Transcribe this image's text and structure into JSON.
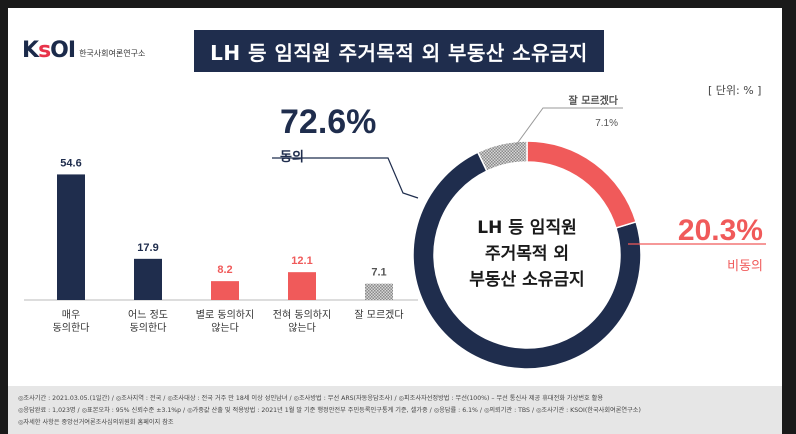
{
  "header": {
    "logo_text": "KSOI",
    "logo_subtitle": "한국사회여론연구소",
    "title": "LH 등 임직원 주거목적 외 부동산 소유금지",
    "unit": "[ 단위: % ]"
  },
  "chart_data": [
    {
      "type": "bar",
      "categories": [
        "매우\n동의한다",
        "어느 정도\n동의한다",
        "별로 동의하지\n않는다",
        "전혀 동의하지\n않는다",
        "잘 모르겠다"
      ],
      "values": [
        54.6,
        17.9,
        8.2,
        12.1,
        7.1
      ],
      "value_labels": [
        "54.6",
        "17.9",
        "8.2",
        "12.1",
        "7.1"
      ],
      "colors": [
        "#1f2d4d",
        "#1f2d4d",
        "#f05a5a",
        "#f05a5a",
        "hatch"
      ],
      "label_colors": [
        "#1f2d4d",
        "#1f2d4d",
        "#f05a5a",
        "#f05a5a",
        "#555555"
      ]
    },
    {
      "type": "pie",
      "style": "donut",
      "center_text": [
        "LH 등 임직원",
        "주거목적 외",
        "부동산 소유금지"
      ],
      "slices": [
        {
          "label": "동의",
          "value": 72.6,
          "value_label": "72.6%",
          "color": "#1f2d4d"
        },
        {
          "label": "비동의",
          "value": 20.3,
          "value_label": "20.3%",
          "color": "#f05a5a"
        },
        {
          "label": "잘 모르겠다",
          "value": 7.1,
          "value_label": "7.1%",
          "color": "hatch"
        }
      ]
    }
  ],
  "footer": {
    "line1": "◎조사기간 : 2021.03.05.(1일간)  / ◎조사지역 : 전국  / ◎조사대상 : 전국 거주 만 18세 이상 성인남녀  / ◎조사방법 : 무선 ARS(자동응답조사)  / ◎피조사자선정방법 : 무선(100%) – 무선 통신사 제공 휴대전화 가상번호 활용",
    "line2": "◎응답완료 : 1,023명  / ◎표본오차 : 95% 신뢰수준 ±3.1%p  / ◎가중값 산출 및 적용방법 : 2021년 1월 말 기준 행정안전부 주민등록인구통계 기준, 셀가중  / ◎응답률 : 6.1%  / ◎의뢰기관 : TBS  / ◎조사기관 : KSOI(한국사회여론연구소)",
    "line3": "◎자세한 사항은 중앙선거여론조사심의위원회 홈페이지 참조"
  }
}
